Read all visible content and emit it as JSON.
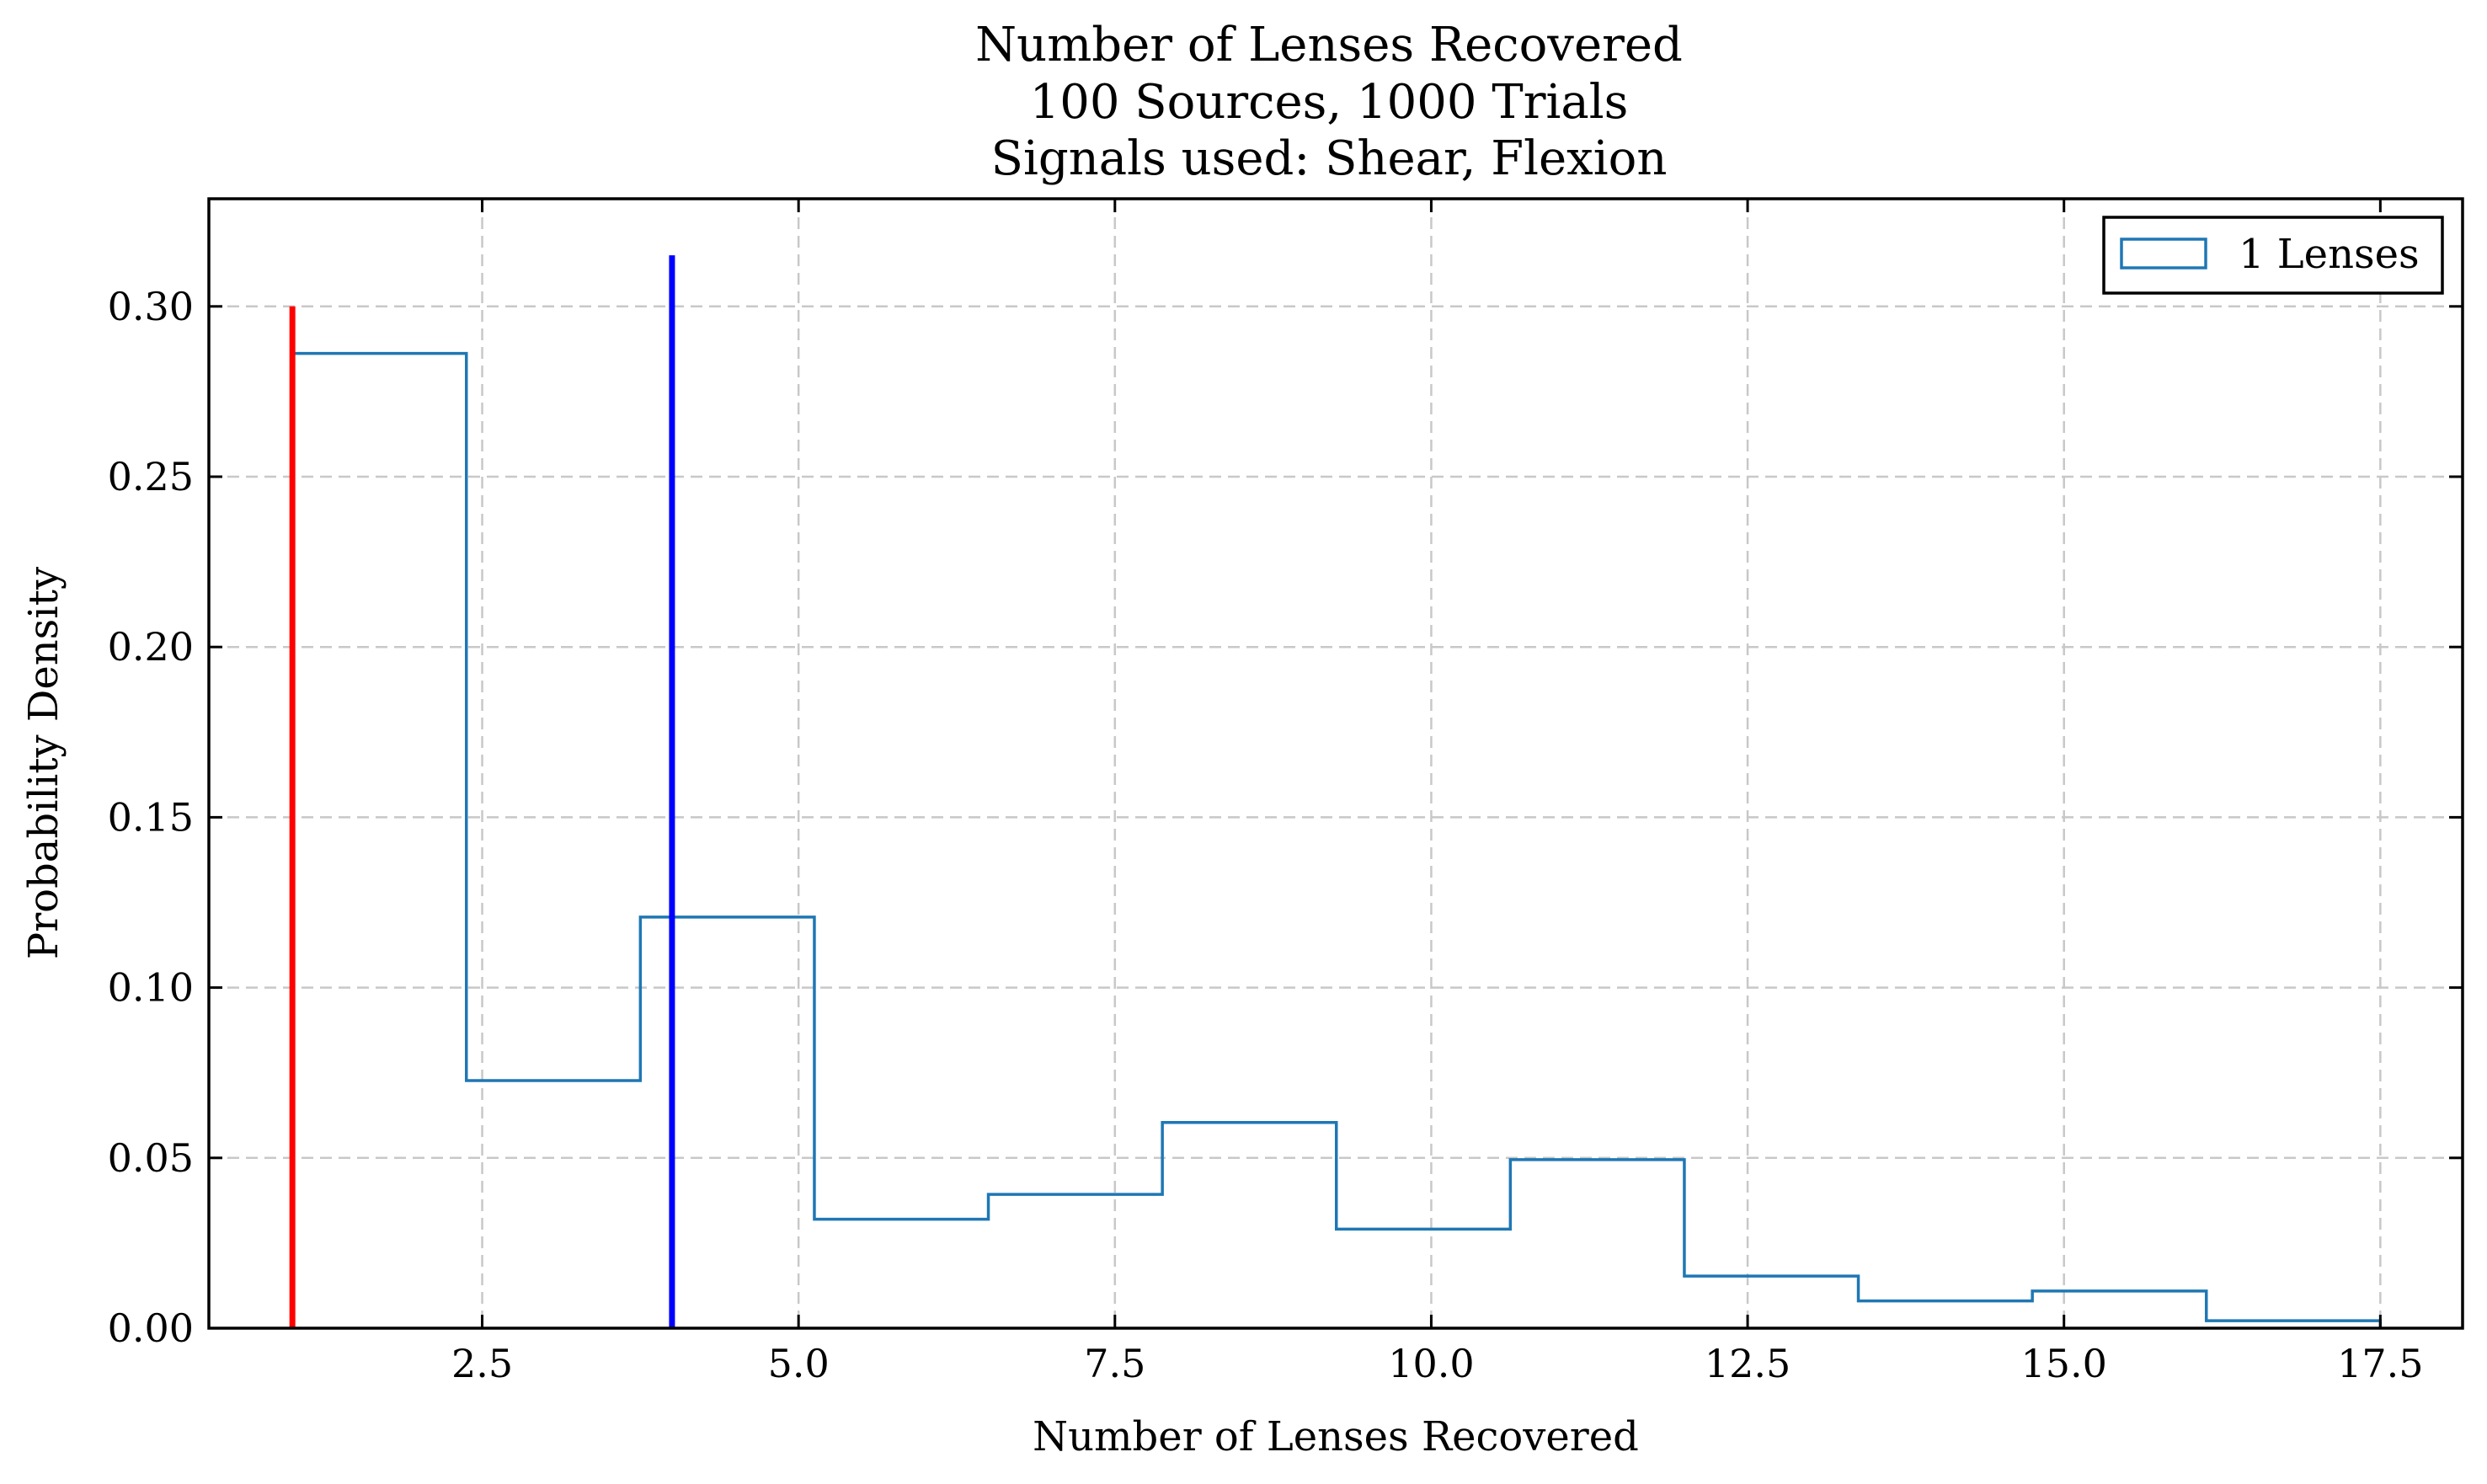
{
  "chart_data": {
    "type": "histogram",
    "title_lines": [
      "Number of Lenses Recovered",
      "100 Sources, 1000 Trials",
      "Signals used: Shear, Flexion"
    ],
    "xlabel": "Number of Lenses Recovered",
    "ylabel": "Probability Density",
    "xlim": [
      0.34,
      18.15
    ],
    "ylim": [
      0.0,
      0.3316
    ],
    "xticks": [
      2.5,
      5.0,
      7.5,
      10.0,
      12.5,
      15.0,
      17.5
    ],
    "xtick_labels": [
      "2.5",
      "5.0",
      "7.5",
      "10.0",
      "12.5",
      "15.0",
      "17.5"
    ],
    "yticks": [
      0.0,
      0.05,
      0.1,
      0.15,
      0.2,
      0.25,
      0.3
    ],
    "ytick_labels": [
      "0.00",
      "0.05",
      "0.10",
      "0.15",
      "0.20",
      "0.25",
      "0.30"
    ],
    "grid": true,
    "legend_position": "top-right",
    "series": [
      {
        "name": "1 Lenses",
        "style": "step",
        "color": "#1f77b4",
        "bin_edges": [
          1.0,
          2.375,
          3.75,
          5.125,
          6.5,
          7.875,
          9.25,
          10.625,
          12.0,
          13.375,
          14.75,
          16.125,
          17.5
        ],
        "values": [
          0.2862,
          0.0727,
          0.1207,
          0.032,
          0.0393,
          0.0604,
          0.0291,
          0.0495,
          0.0153,
          0.008,
          0.0109,
          0.0022
        ]
      }
    ],
    "vertical_lines": [
      {
        "x": 1.0,
        "ymax": 0.3,
        "color": "#ff0000"
      },
      {
        "x": 4.0,
        "ymax": 0.315,
        "color": "#0000ff"
      }
    ]
  }
}
